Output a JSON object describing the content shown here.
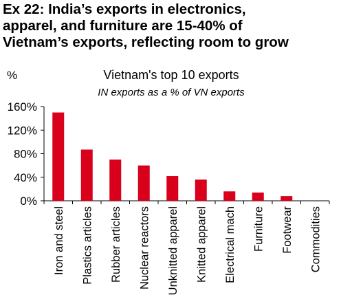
{
  "headline": {
    "lines": [
      "Ex 22: India’s exports in electronics,",
      "apparel, and furniture are 15-40% of",
      "Vietnam’s exports, reflecting room to grow"
    ]
  },
  "chart_data": {
    "type": "bar",
    "title": "Vietnam's top 10 exports",
    "subtitle": "IN exports as a % of VN exports",
    "ylabel": "%",
    "xlabel": "",
    "ylim": [
      0,
      160
    ],
    "yticks": [
      0,
      40,
      80,
      120,
      160
    ],
    "ytick_labels": [
      "0%",
      "40%",
      "80%",
      "120%",
      "160%"
    ],
    "categories": [
      "Iron and steel",
      "Plastics articles",
      "Rubber articles",
      "Nuclear reactors",
      "Unknitted apparel",
      "Knitted apparel",
      "Electrical mach",
      "Furniture",
      "Footwear",
      "Commodities"
    ],
    "values": [
      150,
      87,
      70,
      60,
      42,
      36,
      16,
      14,
      8,
      0
    ],
    "bar_color": "#d9001b",
    "grid": false,
    "legend": "none"
  }
}
